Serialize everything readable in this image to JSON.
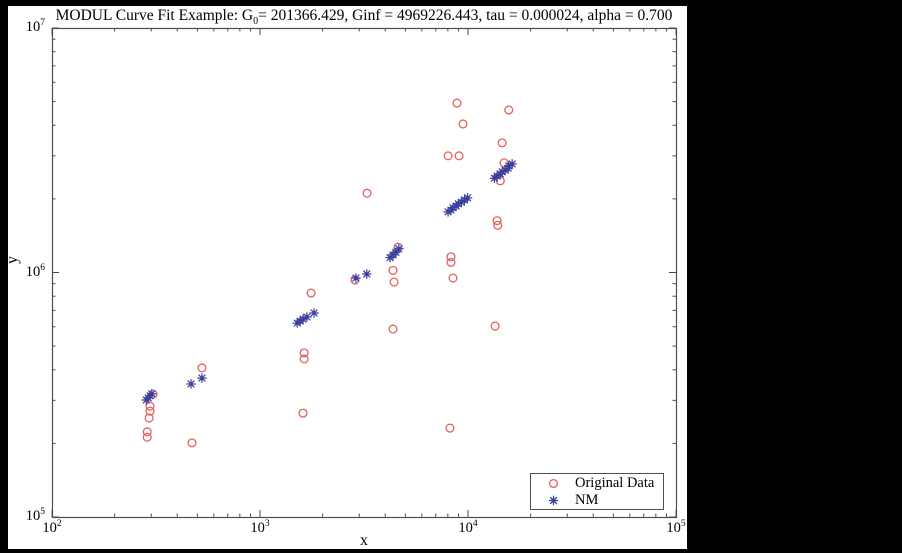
{
  "header": {
    "title_pre": "MODUL Curve Fit Example: G",
    "title_sub": "0",
    "title_post": "= 201366.429, Ginf = 4969226.443, tau = 0.000024, alpha = 0.700"
  },
  "colors": {
    "background": "#000000",
    "plot_background": "#ffffff",
    "axis": "#4d4d4d",
    "series_original": "#e2615e",
    "series_nm": "#3a3f9e"
  },
  "chart_data": {
    "type": "scatter",
    "title": "MODUL Curve Fit Example: G0= 201366.429, Ginf = 4969226.443, tau = 0.000024, alpha = 0.700",
    "xlabel": "x",
    "ylabel": "y",
    "x_scale": "log",
    "y_scale": "log",
    "xlim": [
      100,
      100000
    ],
    "ylim": [
      100000,
      10000000
    ],
    "grid": false,
    "legend_position": "lower right",
    "x_ticks": [
      {
        "base": "10",
        "exp": "2",
        "value": 100
      },
      {
        "base": "10",
        "exp": "3",
        "value": 1000
      },
      {
        "base": "10",
        "exp": "4",
        "value": 10000
      },
      {
        "base": "10",
        "exp": "5",
        "value": 100000
      }
    ],
    "y_ticks": [
      {
        "base": "10",
        "exp": "5",
        "value": 100000
      },
      {
        "base": "10",
        "exp": "6",
        "value": 1000000
      },
      {
        "base": "10",
        "exp": "7",
        "value": 10000000
      }
    ],
    "series": [
      {
        "name": "Original Data",
        "marker": "circle",
        "color": "#e2615e",
        "points": [
          [
            306,
            318000
          ],
          [
            296,
            284000
          ],
          [
            296,
            271000
          ],
          [
            293,
            254000
          ],
          [
            287,
            223000
          ],
          [
            287,
            212000
          ],
          [
            526,
            407000
          ],
          [
            471,
            201000
          ],
          [
            1760,
            824000
          ],
          [
            1630,
            469000
          ],
          [
            1630,
            443000
          ],
          [
            1610,
            266000
          ],
          [
            2860,
            932000
          ],
          [
            3270,
            2110000
          ],
          [
            4610,
            1270000
          ],
          [
            4360,
            1020000
          ],
          [
            4410,
            914000
          ],
          [
            4360,
            587000
          ],
          [
            8020,
            3000000
          ],
          [
            9060,
            3000000
          ],
          [
            8850,
            4930000
          ],
          [
            9460,
            4050000
          ],
          [
            8280,
            1160000
          ],
          [
            8280,
            1100000
          ],
          [
            8470,
            949000
          ],
          [
            8190,
            231000
          ],
          [
            15700,
            4620000
          ],
          [
            14600,
            3390000
          ],
          [
            14900,
            2810000
          ],
          [
            14300,
            2370000
          ],
          [
            13800,
            1630000
          ],
          [
            13900,
            1560000
          ],
          [
            13500,
            604000
          ]
        ]
      },
      {
        "name": "NM",
        "marker": "asterisk",
        "color": "#3a3f9e",
        "points": [
          [
            284,
            301000
          ],
          [
            290,
            307000
          ],
          [
            296,
            313000
          ],
          [
            302,
            319000
          ],
          [
            466,
            350000
          ],
          [
            526,
            370000
          ],
          [
            1510,
            621000
          ],
          [
            1560,
            633000
          ],
          [
            1610,
            645000
          ],
          [
            1680,
            658000
          ],
          [
            1820,
            683000
          ],
          [
            2890,
            949000
          ],
          [
            3260,
            986000
          ],
          [
            4220,
            1150000
          ],
          [
            4360,
            1180000
          ],
          [
            4500,
            1210000
          ],
          [
            4650,
            1250000
          ],
          [
            8020,
            1770000
          ],
          [
            8280,
            1800000
          ],
          [
            8470,
            1840000
          ],
          [
            8770,
            1870000
          ],
          [
            8980,
            1910000
          ],
          [
            9290,
            1940000
          ],
          [
            9620,
            1980000
          ],
          [
            9950,
            2020000
          ],
          [
            13400,
            2430000
          ],
          [
            13800,
            2480000
          ],
          [
            14300,
            2530000
          ],
          [
            14600,
            2580000
          ],
          [
            15100,
            2620000
          ],
          [
            15600,
            2670000
          ],
          [
            15700,
            2730000
          ],
          [
            16300,
            2780000
          ]
        ]
      }
    ]
  }
}
